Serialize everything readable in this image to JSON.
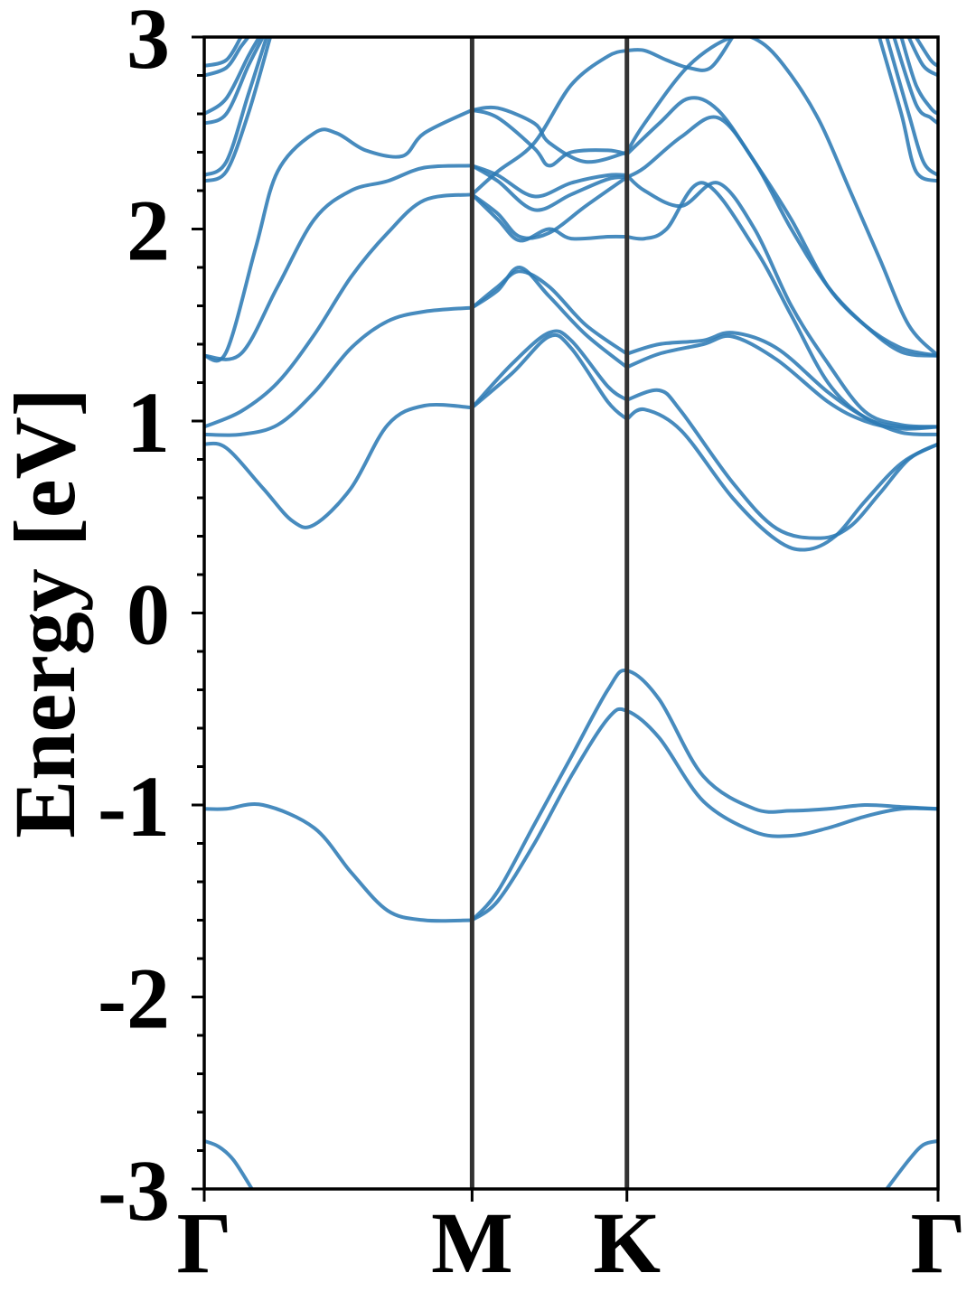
{
  "chart_data": {
    "type": "line",
    "title": "",
    "xlabel": "",
    "ylabel": "Energy [eV]",
    "ylim": [
      -3,
      3
    ],
    "xlim": [
      0,
      1
    ],
    "grid": false,
    "legend": "none",
    "line_color": "#2e7bb5",
    "vline_color": "#333333",
    "high_symmetry_points": [
      {
        "label": "Γ",
        "x": 0.0
      },
      {
        "label": "M",
        "x": 0.365
      },
      {
        "label": "K",
        "x": 0.576
      },
      {
        "label": "Γ",
        "x": 1.0
      }
    ],
    "y_ticks": [
      {
        "label": "3",
        "value": 3
      },
      {
        "label": "2",
        "value": 2
      },
      {
        "label": "1",
        "value": 1
      },
      {
        "label": "0",
        "value": 0
      },
      {
        "label": "-1",
        "value": -1
      },
      {
        "label": "-2",
        "value": -2
      },
      {
        "label": "-3",
        "value": -3
      }
    ],
    "series": [
      {
        "x": [
          0.0,
          0.03,
          0.08,
          0.15,
          0.2,
          0.25,
          0.3,
          0.365
        ],
        "y": [
          -1.02,
          -1.02,
          -1.0,
          -1.12,
          -1.35,
          -1.55,
          -1.6,
          -1.6
        ]
      },
      {
        "x": [
          0.365,
          0.4,
          0.45,
          0.5,
          0.55,
          0.576,
          0.62,
          0.68,
          0.75,
          0.8,
          0.85,
          0.9,
          0.95,
          1.0
        ],
        "y": [
          -1.6,
          -1.5,
          -1.2,
          -0.85,
          -0.55,
          -0.51,
          -0.65,
          -0.98,
          -1.14,
          -1.16,
          -1.12,
          -1.06,
          -1.02,
          -1.02
        ]
      },
      {
        "x": [
          0.365,
          0.4,
          0.45,
          0.5,
          0.55,
          0.576,
          0.62,
          0.68,
          0.75,
          0.8,
          0.85,
          0.9,
          0.95,
          1.0
        ],
        "y": [
          -1.6,
          -1.45,
          -1.1,
          -0.75,
          -0.4,
          -0.3,
          -0.45,
          -0.85,
          -1.02,
          -1.03,
          -1.02,
          -1.0,
          -1.01,
          -1.02
        ]
      },
      {
        "x": [
          0.0,
          0.03,
          0.08,
          0.12,
          0.15,
          0.2,
          0.25,
          0.3,
          0.365
        ],
        "y": [
          0.88,
          0.86,
          0.65,
          0.48,
          0.46,
          0.65,
          0.98,
          1.08,
          1.07
        ]
      },
      {
        "x": [
          0.365,
          0.42,
          0.47,
          0.5,
          0.55,
          0.576
        ],
        "y": [
          1.07,
          1.25,
          1.44,
          1.38,
          1.1,
          1.01
        ]
      },
      {
        "x": [
          0.365,
          0.42,
          0.47,
          0.5,
          0.55,
          0.576
        ],
        "y": [
          1.07,
          1.3,
          1.46,
          1.42,
          1.18,
          1.11
        ]
      },
      {
        "x": [
          0.576,
          0.6,
          0.65,
          0.72,
          0.78,
          0.82,
          0.86,
          0.9,
          0.95,
          1.0
        ],
        "y": [
          1.01,
          1.06,
          0.95,
          0.6,
          0.38,
          0.33,
          0.4,
          0.58,
          0.78,
          0.88
        ]
      },
      {
        "x": [
          0.576,
          0.62,
          0.65,
          0.72,
          0.78,
          0.84,
          0.88,
          0.92,
          0.96,
          1.0
        ],
        "y": [
          1.11,
          1.16,
          1.05,
          0.68,
          0.44,
          0.39,
          0.45,
          0.62,
          0.8,
          0.88
        ]
      },
      {
        "x": [
          0.0,
          0.05,
          0.1,
          0.15,
          0.2,
          0.25,
          0.3,
          0.365
        ],
        "y": [
          0.93,
          0.93,
          0.98,
          1.15,
          1.38,
          1.52,
          1.57,
          1.59
        ]
      },
      {
        "x": [
          0.365,
          0.4,
          0.43,
          0.47,
          0.52,
          0.576
        ],
        "y": [
          1.59,
          1.68,
          1.8,
          1.65,
          1.45,
          1.28
        ]
      },
      {
        "x": [
          0.365,
          0.4,
          0.43,
          0.47,
          0.52,
          0.576
        ],
        "y": [
          1.59,
          1.7,
          1.78,
          1.7,
          1.5,
          1.35
        ]
      },
      {
        "x": [
          0.576,
          0.62,
          0.68,
          0.72,
          0.78,
          0.85,
          0.9,
          0.95,
          1.0
        ],
        "y": [
          1.28,
          1.35,
          1.4,
          1.44,
          1.32,
          1.1,
          1.0,
          0.96,
          0.97
        ]
      },
      {
        "x": [
          0.576,
          0.62,
          0.68,
          0.72,
          0.78,
          0.85,
          0.9,
          0.95,
          1.0
        ],
        "y": [
          1.35,
          1.4,
          1.42,
          1.46,
          1.38,
          1.15,
          1.02,
          0.94,
          0.93
        ]
      },
      {
        "x": [
          0.0,
          0.05,
          0.1,
          0.15,
          0.2,
          0.25,
          0.3,
          0.365
        ],
        "y": [
          0.97,
          1.05,
          1.2,
          1.45,
          1.75,
          1.98,
          2.15,
          2.18
        ]
      },
      {
        "x": [
          0.365,
          0.4,
          0.43,
          0.47,
          0.5,
          0.55,
          0.576
        ],
        "y": [
          2.18,
          2.05,
          1.94,
          2.0,
          1.95,
          1.96,
          1.96
        ]
      },
      {
        "x": [
          0.365,
          0.4,
          0.43,
          0.47,
          0.52,
          0.576
        ],
        "y": [
          2.18,
          2.08,
          1.96,
          1.98,
          2.12,
          2.27
        ]
      },
      {
        "x": [
          0.576,
          0.6,
          0.63,
          0.68,
          0.75,
          0.8,
          0.85,
          0.9,
          0.95,
          1.0
        ],
        "y": [
          1.96,
          1.95,
          2.0,
          2.24,
          1.9,
          1.55,
          1.2,
          1.02,
          0.97,
          0.97
        ]
      },
      {
        "x": [
          0.0,
          0.05,
          0.1,
          0.15,
          0.2,
          0.25,
          0.3,
          0.365
        ],
        "y": [
          1.34,
          1.35,
          1.7,
          2.05,
          2.2,
          2.25,
          2.32,
          2.33
        ]
      },
      {
        "x": [
          0.365,
          0.4,
          0.45,
          0.5,
          0.55,
          0.576
        ],
        "y": [
          2.33,
          2.25,
          2.1,
          2.18,
          2.26,
          2.27
        ]
      },
      {
        "x": [
          0.365,
          0.4,
          0.45,
          0.5,
          0.55,
          0.576
        ],
        "y": [
          2.33,
          2.28,
          2.17,
          2.24,
          2.28,
          2.28
        ]
      },
      {
        "x": [
          0.576,
          0.6,
          0.65,
          0.7,
          0.75,
          0.8,
          0.85,
          0.9,
          0.95,
          1.0
        ],
        "y": [
          2.28,
          2.2,
          2.12,
          2.24,
          2.0,
          1.6,
          1.3,
          1.05,
          0.98,
          0.97
        ]
      },
      {
        "x": [
          0.576,
          0.6,
          0.65,
          0.7,
          0.75,
          0.8,
          0.85,
          0.9,
          0.95,
          1.0
        ],
        "y": [
          2.27,
          2.32,
          2.48,
          2.58,
          2.35,
          2.0,
          1.7,
          1.5,
          1.36,
          1.34
        ]
      },
      {
        "x": [
          0.0,
          0.03,
          0.07,
          0.1,
          0.15,
          0.18,
          0.22,
          0.27,
          0.3,
          0.365
        ],
        "y": [
          1.34,
          1.36,
          1.9,
          2.3,
          2.5,
          2.5,
          2.41,
          2.38,
          2.5,
          2.62
        ]
      },
      {
        "x": [
          0.365,
          0.4,
          0.45,
          0.47,
          0.5,
          0.55,
          0.576
        ],
        "y": [
          2.62,
          2.58,
          2.42,
          2.33,
          2.4,
          2.41,
          2.39
        ]
      },
      {
        "x": [
          0.365,
          0.4,
          0.45,
          0.47,
          0.52,
          0.576
        ],
        "y": [
          2.62,
          2.63,
          2.55,
          2.45,
          2.35,
          2.4
        ]
      },
      {
        "x": [
          0.576,
          0.62,
          0.66,
          0.7,
          0.75,
          0.8,
          0.85,
          0.9,
          0.95,
          1.0
        ],
        "y": [
          2.39,
          2.55,
          2.68,
          2.62,
          2.35,
          2.05,
          1.7,
          1.5,
          1.38,
          1.34
        ]
      },
      {
        "x": [
          0.576,
          0.6,
          0.66,
          0.72,
          0.76,
          0.8,
          0.84,
          0.88,
          0.92,
          0.96,
          1.0
        ],
        "y": [
          2.4,
          2.55,
          2.85,
          3.0,
          2.97,
          2.8,
          2.55,
          2.2,
          1.85,
          1.5,
          1.34
        ]
      },
      {
        "x": [
          0.365,
          0.4,
          0.45,
          0.5,
          0.55,
          0.576
        ],
        "y": [
          2.18,
          2.3,
          2.45,
          2.75,
          2.9,
          2.93
        ]
      },
      {
        "x": [
          0.576,
          0.6,
          0.63,
          0.66,
          0.69,
          0.72
        ],
        "y": [
          2.93,
          2.93,
          2.88,
          2.84,
          2.84,
          3.0
        ]
      },
      {
        "x": [
          0.0,
          0.03,
          0.06,
          0.09
        ],
        "y": [
          2.25,
          2.3,
          2.6,
          3.0
        ]
      },
      {
        "x": [
          0.0,
          0.03,
          0.06,
          0.085
        ],
        "y": [
          2.28,
          2.35,
          2.7,
          3.0
        ]
      },
      {
        "x": [
          0.0,
          0.03,
          0.06,
          0.08
        ],
        "y": [
          2.55,
          2.6,
          2.85,
          3.0
        ]
      },
      {
        "x": [
          0.0,
          0.03,
          0.06,
          0.075
        ],
        "y": [
          2.6,
          2.68,
          2.9,
          3.0
        ]
      },
      {
        "x": [
          0.0,
          0.03,
          0.05,
          0.06
        ],
        "y": [
          2.8,
          2.84,
          2.95,
          3.0
        ]
      },
      {
        "x": [
          0.0,
          0.03,
          0.05
        ],
        "y": [
          2.85,
          2.88,
          3.0
        ]
      },
      {
        "x": [
          0.92,
          0.95,
          0.97,
          1.0
        ],
        "y": [
          3.0,
          2.6,
          2.3,
          2.25
        ]
      },
      {
        "x": [
          0.93,
          0.96,
          0.98,
          1.0
        ],
        "y": [
          3.0,
          2.6,
          2.35,
          2.28
        ]
      },
      {
        "x": [
          0.94,
          0.97,
          0.99,
          1.0
        ],
        "y": [
          3.0,
          2.65,
          2.58,
          2.55
        ]
      },
      {
        "x": [
          0.95,
          0.97,
          0.99,
          1.0
        ],
        "y": [
          3.0,
          2.75,
          2.63,
          2.6
        ]
      },
      {
        "x": [
          0.96,
          0.98,
          1.0
        ],
        "y": [
          3.0,
          2.85,
          2.8
        ]
      },
      {
        "x": [
          0.97,
          0.99,
          1.0
        ],
        "y": [
          3.0,
          2.88,
          2.85
        ]
      },
      {
        "x": [
          0.0,
          0.02,
          0.04,
          0.065
        ],
        "y": [
          -2.75,
          -2.78,
          -2.85,
          -3.0
        ]
      },
      {
        "x": [
          0.93,
          0.96,
          0.98,
          1.0
        ],
        "y": [
          -3.0,
          -2.85,
          -2.77,
          -2.75
        ]
      }
    ]
  }
}
